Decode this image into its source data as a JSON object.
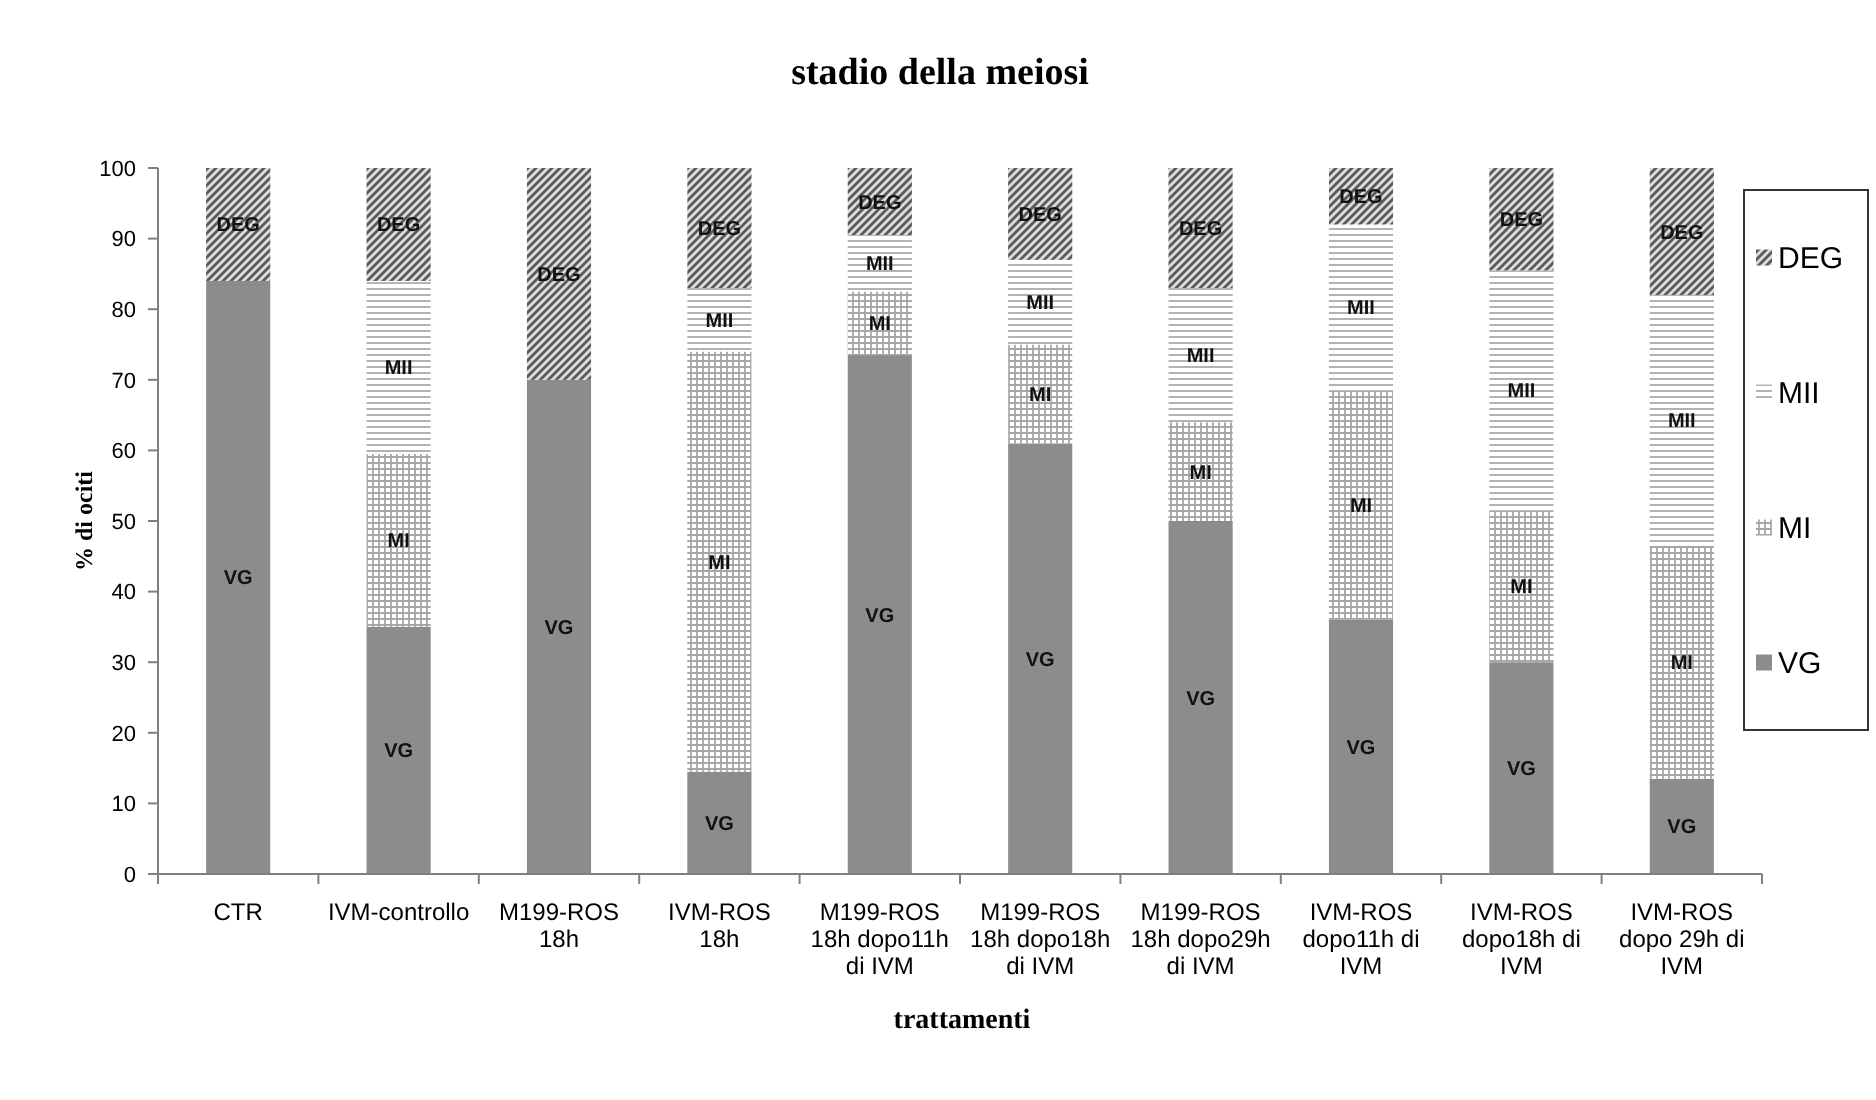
{
  "chart_data": {
    "type": "bar",
    "stacked": true,
    "title": "stadio della meiosi",
    "xlabel": "trattamenti",
    "ylabel": "% di ociti",
    "categories": [
      "CTR",
      "IVM-controllo",
      "M199-ROS 18h",
      "IVM-ROS 18h",
      "M199-ROS 18h dopo11h di IVM",
      "M199-ROS 18h dopo18h di IVM",
      "M199-ROS 18h dopo29h di IVM",
      "IVM-ROS dopo11h di IVM",
      "IVM-ROS dopo18h di IVM",
      "IVM-ROS dopo 29h di IVM"
    ],
    "series": [
      {
        "name": "VG",
        "color": "#8c8c8c",
        "values": [
          84,
          35,
          70,
          14.5,
          73.5,
          61,
          50,
          36,
          30,
          13.5
        ],
        "value_labels": [
          "VG",
          "VG",
          "VG",
          "VG",
          "VG",
          "VG",
          "VG",
          "VG",
          "VG",
          "VG"
        ]
      },
      {
        "name": "MI",
        "color": "#a6a6a6",
        "values": [
          null,
          24.5,
          null,
          59.5,
          9,
          14,
          14,
          32.5,
          21.5,
          33
        ],
        "value_labels": [
          null,
          "MI",
          null,
          "MI",
          "MI",
          "MI",
          "MI",
          "MI",
          "MI",
          "MI"
        ]
      },
      {
        "name": "MII",
        "color": "#b3b3b3",
        "values": [
          null,
          24.5,
          null,
          9,
          8,
          12,
          19,
          23.5,
          34,
          35.5
        ],
        "value_labels": [
          null,
          "MII",
          null,
          "MII",
          "MII",
          "MII",
          "MII",
          "MII",
          "MII",
          "MII"
        ]
      },
      {
        "name": "DEG",
        "color": "#5a5a5a",
        "values": [
          16,
          16,
          30,
          17,
          9.5,
          13,
          17,
          8,
          14.5,
          18
        ],
        "value_labels": [
          "DEG",
          "DEG",
          "DEG",
          "DEG",
          "DEG",
          "DEG",
          "DEG",
          "DEG",
          "DEG",
          "DEG"
        ]
      }
    ],
    "ylim": [
      0,
      100
    ],
    "yticks": [
      0,
      10,
      20,
      30,
      40,
      50,
      60,
      70,
      80,
      90,
      100
    ],
    "legend": "right"
  }
}
